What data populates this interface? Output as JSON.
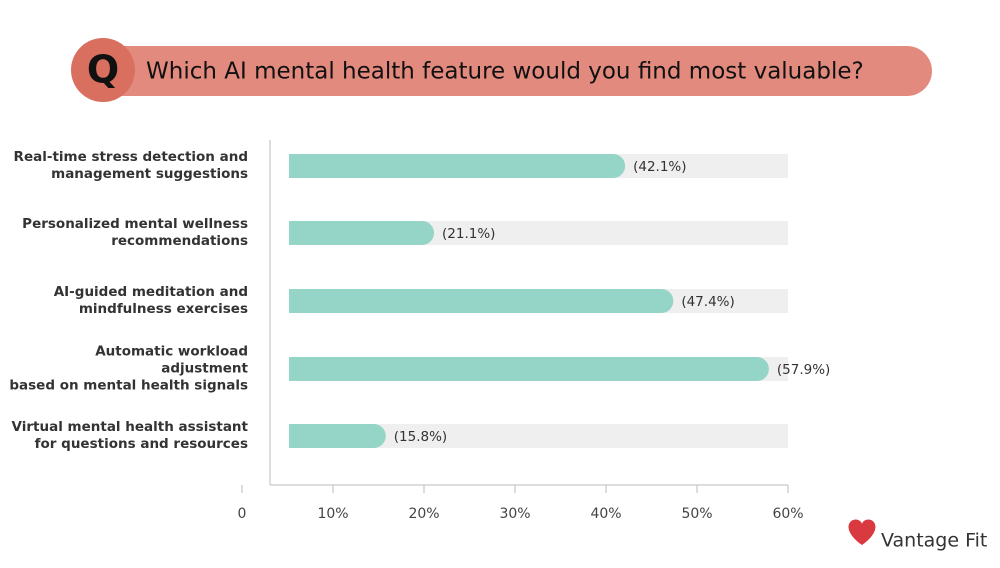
{
  "chart_data": {
    "type": "hbar",
    "badge": "Q",
    "title": "Which AI mental health feature would you find most valuable?",
    "brand": "Vantage Fit",
    "categories": [
      "Real-time stress detection and\nmanagement suggestions",
      "Personalized mental wellness\nrecommendations",
      "AI-guided meditation and\nmindfulness exercises",
      "Automatic workload adjustment\nbased on mental health signals",
      "Virtual mental health assistant\nfor questions and resources"
    ],
    "values": [
      42.1,
      21.1,
      47.4,
      57.9,
      15.8
    ],
    "value_labels": [
      "(42.1%)",
      "(21.1%)",
      "(47.4%)",
      "(57.9%)",
      "(15.8%)"
    ],
    "color": "#95d5c8",
    "track_color": "#efefef",
    "xlim": [
      0,
      60
    ],
    "xticks": [
      0,
      {
        "value": 10,
        "label": "10%"
      },
      {
        "value": 20,
        "label": "20%"
      },
      {
        "value": 30,
        "label": "30%"
      },
      {
        "value": 40,
        "label": "40%"
      },
      {
        "value": 50,
        "label": "50%"
      },
      {
        "value": 60,
        "label": "60%"
      }
    ]
  }
}
